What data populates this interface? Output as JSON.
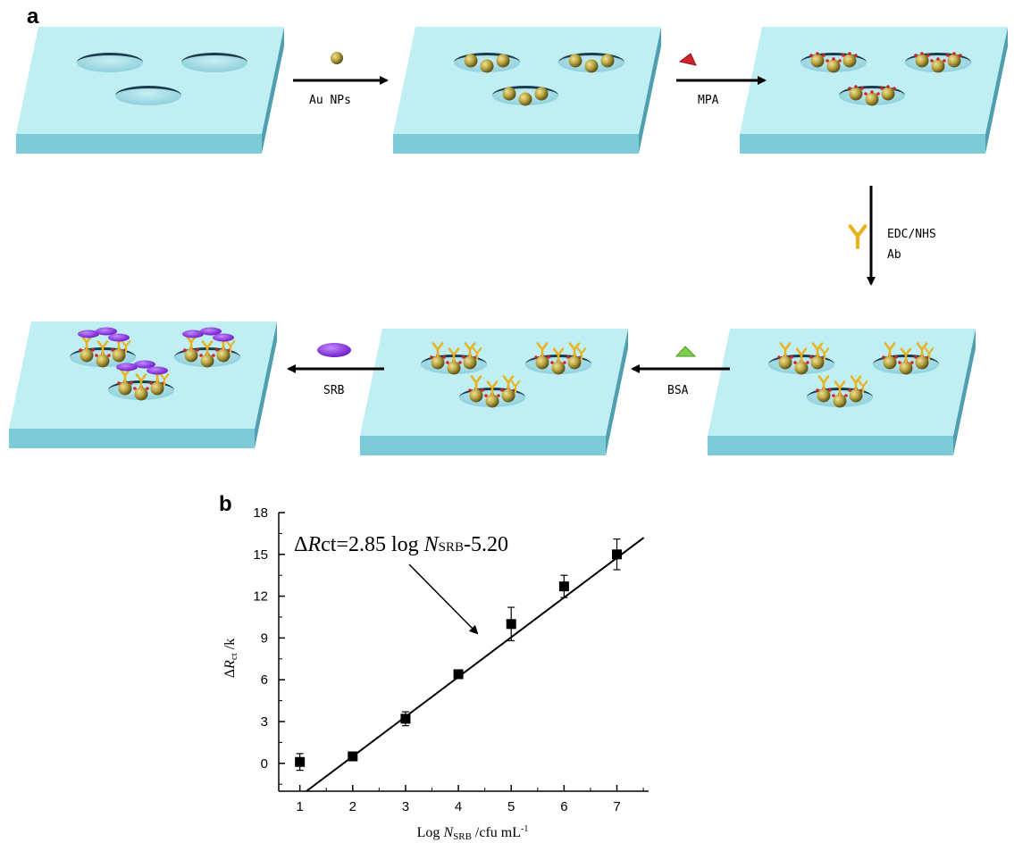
{
  "panel_a": {
    "letter": "a",
    "steps": {
      "au": "Au NPs",
      "mpa": "MPA",
      "edc": "EDC/NHS",
      "ab": "Ab",
      "bsa": "BSA",
      "srb": "SRB"
    },
    "colors": {
      "plate_top": "#bfeff3",
      "plate_front": "#7dcbd6",
      "plate_side": "#4f9fb1",
      "well_inner": "#a6dde6",
      "well_rim": "#1d3a4a",
      "gold": "#b7a33e",
      "mpa": "#d3242a",
      "antibody": "#e8b321",
      "bsa": "#7ccf46",
      "srb": "#8b2cd9"
    }
  },
  "panel_b": {
    "letter": "b",
    "equation": {
      "delta": "Δ",
      "R": "R",
      "ct": "ct=2.85 log ",
      "N": "N",
      "sub": "SRB",
      "tail": "-5.20"
    },
    "ylabel": {
      "delta": "Δ",
      "R": "R",
      "sub": "ct",
      "unit": " /k"
    },
    "xlabel": {
      "log": "Log ",
      "N": "N",
      "sub": "SRB",
      "unit": " /cfu mL",
      "sup": "-1"
    }
  },
  "chart_data": {
    "type": "scatter",
    "x": [
      1,
      2,
      3,
      4,
      5,
      6,
      7
    ],
    "y": [
      0.1,
      0.5,
      3.2,
      6.4,
      10.0,
      12.7,
      15.0
    ],
    "yerr": [
      0.6,
      0.3,
      0.5,
      0.3,
      1.2,
      0.8,
      1.1
    ],
    "fit": {
      "slope": 2.85,
      "intercept": -5.2
    },
    "xlim": [
      0.6,
      7.6
    ],
    "ylim": [
      -2,
      18
    ],
    "xticks": [
      1,
      2,
      3,
      4,
      5,
      6,
      7
    ],
    "yticks": [
      0,
      3,
      6,
      9,
      12,
      15,
      18
    ],
    "grid": false
  }
}
